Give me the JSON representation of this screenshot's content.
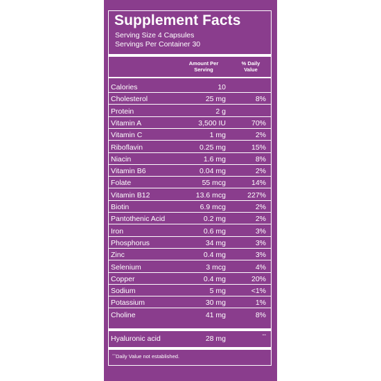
{
  "label": {
    "title": "Supplement Facts",
    "serving_size": "Serving Size 4 Capsules",
    "servings_per_container": "Servings Per Container 30",
    "header_amount_line1": "Amount Per",
    "header_amount_line2": "Serving",
    "header_dv_line1": "% Daily",
    "header_dv_line2": "Value",
    "footnote": "ˆˆDaily Value not established."
  },
  "nutrients": [
    {
      "name": "Calories",
      "amount": "10",
      "dv": ""
    },
    {
      "name": "Cholesterol",
      "amount": "25 mg",
      "dv": "8%"
    },
    {
      "name": "Protein",
      "amount": "2 g",
      "dv": ""
    },
    {
      "name": "Vitamin A",
      "amount": "3,500 IU",
      "dv": "70%"
    },
    {
      "name": "Vitamin C",
      "amount": "1 mg",
      "dv": "2%"
    },
    {
      "name": "Riboflavin",
      "amount": "0.25 mg",
      "dv": "15%"
    },
    {
      "name": "Niacin",
      "amount": "1.6 mg",
      "dv": "8%"
    },
    {
      "name": "Vitamin B6",
      "amount": "0.04 mg",
      "dv": "2%"
    },
    {
      "name": "Folate",
      "amount": "55 mcg",
      "dv": "14%"
    },
    {
      "name": "Vitamin B12",
      "amount": "13.6 mcg",
      "dv": "227%"
    },
    {
      "name": "Biotin",
      "amount": "6.9 mcg",
      "dv": "2%"
    },
    {
      "name": "Pantothenic Acid",
      "amount": "0.2 mg",
      "dv": "2%"
    },
    {
      "name": "Iron",
      "amount": "0.6 mg",
      "dv": "3%"
    },
    {
      "name": "Phosphorus",
      "amount": "34 mg",
      "dv": "3%"
    },
    {
      "name": "Zinc",
      "amount": "0.4 mg",
      "dv": "3%"
    },
    {
      "name": "Selenium",
      "amount": "3 mcg",
      "dv": "4%"
    },
    {
      "name": "Copper",
      "amount": "0.4 mg",
      "dv": "20%"
    },
    {
      "name": "Sodium",
      "amount": "5 mg",
      "dv": "<1%"
    },
    {
      "name": "Potassium",
      "amount": "30 mg",
      "dv": "1%"
    },
    {
      "name": "Choline",
      "amount": "41 mg",
      "dv": "8%"
    }
  ],
  "other_ingredient": {
    "name": "Hyaluronic acid",
    "amount": "28 mg",
    "dv": "ˆˆ"
  },
  "colors": {
    "background": "#8a3d8d",
    "text": "#ffffff",
    "page": "#ffffff"
  }
}
